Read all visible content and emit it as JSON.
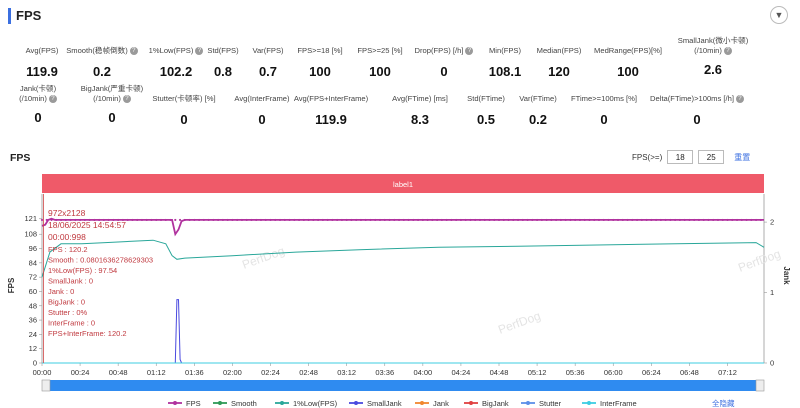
{
  "header": {
    "title": "FPS"
  },
  "metrics": [
    {
      "label": "Avg(FPS)",
      "value": "119.9",
      "help": false
    },
    {
      "label": "Smooth(稳帧倒数)",
      "value": "0.2",
      "help": true
    },
    {
      "label": "1%Low(FPS)",
      "value": "102.2",
      "help": true
    },
    {
      "label": "Std(FPS)",
      "value": "0.8",
      "help": false
    },
    {
      "label": "Var(FPS)",
      "value": "0.7",
      "help": false
    },
    {
      "label": "FPS>=18 [%]",
      "value": "100",
      "help": false
    },
    {
      "label": "FPS>=25 [%]",
      "value": "100",
      "help": false
    },
    {
      "label": "Drop(FPS) [/h]",
      "value": "0",
      "help": true
    },
    {
      "label": "Min(FPS)",
      "value": "108.1",
      "help": false
    },
    {
      "label": "Median(FPS)",
      "value": "120",
      "help": false
    },
    {
      "label": "MedRange(FPS)[%]",
      "value": "100",
      "help": false
    },
    {
      "label": "SmallJank(微小卡顿)",
      "label2": "(/10min)",
      "value": "2.6",
      "help": true
    },
    {
      "label": "Jank(卡顿)",
      "label2": "(/10min)",
      "value": "0",
      "help": true
    },
    {
      "label": "BigJank(严重卡顿)",
      "label2": "(/10min)",
      "value": "0",
      "help": true
    },
    {
      "label": "Stutter(卡顿率) [%]",
      "value": "0",
      "help": false
    },
    {
      "label": "Avg(InterFrame)",
      "value": "0",
      "help": false
    },
    {
      "label": "Avg(FPS+InterFrame)",
      "value": "119.9",
      "help": false
    },
    {
      "label": "Avg(FTime) [ms]",
      "value": "8.3",
      "help": false
    },
    {
      "label": "Std(FTime)",
      "value": "0.5",
      "help": false
    },
    {
      "label": "Var(FTime)",
      "value": "0.2",
      "help": false
    },
    {
      "label": "FTime>=100ms [%]",
      "value": "0",
      "help": false
    },
    {
      "label": "Delta(FTime)>100ms [/h]",
      "value": "0",
      "help": true
    }
  ],
  "chart_section": {
    "title": "FPS",
    "range_label": "FPS(>=)",
    "range_min": "18",
    "range_max": "25",
    "reset_label": "重置"
  },
  "watermark": "PerfDog",
  "chart_data": {
    "type": "line",
    "band_label": "label1",
    "ylabel": "FPS",
    "y2label": "Jank",
    "yticks": [
      0,
      12,
      24,
      36,
      48,
      60,
      72,
      84,
      96,
      108,
      121
    ],
    "ylim": [
      0,
      130
    ],
    "y2ticks": [
      0,
      1,
      2
    ],
    "y2lim": [
      0,
      2.2
    ],
    "xticks": [
      "00:00",
      "00:24",
      "00:48",
      "01:12",
      "01:36",
      "02:00",
      "02:24",
      "02:48",
      "03:12",
      "03:36",
      "04:00",
      "04:24",
      "04:48",
      "05:12",
      "05:36",
      "06:00",
      "06:24",
      "06:48",
      "07:12"
    ],
    "xlim": [
      0,
      455
    ],
    "series": [
      {
        "name": "FPS",
        "color": "#b0329e",
        "x": [
          0,
          2,
          4,
          6,
          8,
          80,
          82,
          84,
          86,
          88,
          90,
          120,
          200,
          300,
          400,
          455
        ],
        "y": [
          115,
          116,
          120,
          121,
          120,
          120,
          120,
          108,
          112,
          119,
          120,
          120,
          120,
          120,
          120,
          120
        ]
      },
      {
        "name": "Smooth",
        "color": "#2e9a57",
        "x": [
          0,
          455
        ],
        "y": [
          0,
          0
        ]
      },
      {
        "name": "1%Low(FPS)",
        "color": "#2aa79a",
        "x": [
          0,
          5,
          12,
          25,
          40,
          55,
          70,
          78,
          82,
          85,
          90,
          120,
          160,
          200,
          250,
          300,
          350,
          400,
          450,
          455
        ],
        "y": [
          72,
          93,
          100,
          100,
          101,
          102,
          103,
          100,
          90,
          87,
          88,
          90,
          93,
          95,
          97,
          98,
          99,
          100,
          101,
          97
        ]
      },
      {
        "name": "SmallJank",
        "color": "#4a4adf",
        "x": [
          0,
          84,
          85,
          86,
          87,
          88,
          455
        ],
        "y": [
          0,
          0,
          0.9,
          0.9,
          0.05,
          0,
          0
        ]
      },
      {
        "name": "Jank",
        "color": "#f0872f",
        "x": [
          0,
          455
        ],
        "y": [
          0,
          0
        ]
      },
      {
        "name": "BigJank",
        "color": "#e04040",
        "x": [
          0,
          455
        ],
        "y": [
          0,
          0
        ]
      },
      {
        "name": "Stutter",
        "color": "#5c8fe8",
        "x": [
          0,
          455
        ],
        "y": [
          0,
          0
        ]
      },
      {
        "name": "InterFrame",
        "color": "#3ccde2",
        "x": [
          0,
          455
        ],
        "y": [
          0,
          0
        ]
      }
    ],
    "tooltip": [
      "972x2128",
      "18/06/2025 14:54:57",
      "00:00:998",
      "FPS          : 120.2",
      "Smooth       : 0.0801636278629303",
      "1%Low(FPS)   : 97.54",
      "SmallJank    : 0",
      "Jank         : 0",
      "BigJank      : 0",
      "Stutter      : 0%",
      "InterFrame   : 0",
      "FPS+InterFrame: 120.2"
    ],
    "legend_hide_all": "全隐藏"
  }
}
